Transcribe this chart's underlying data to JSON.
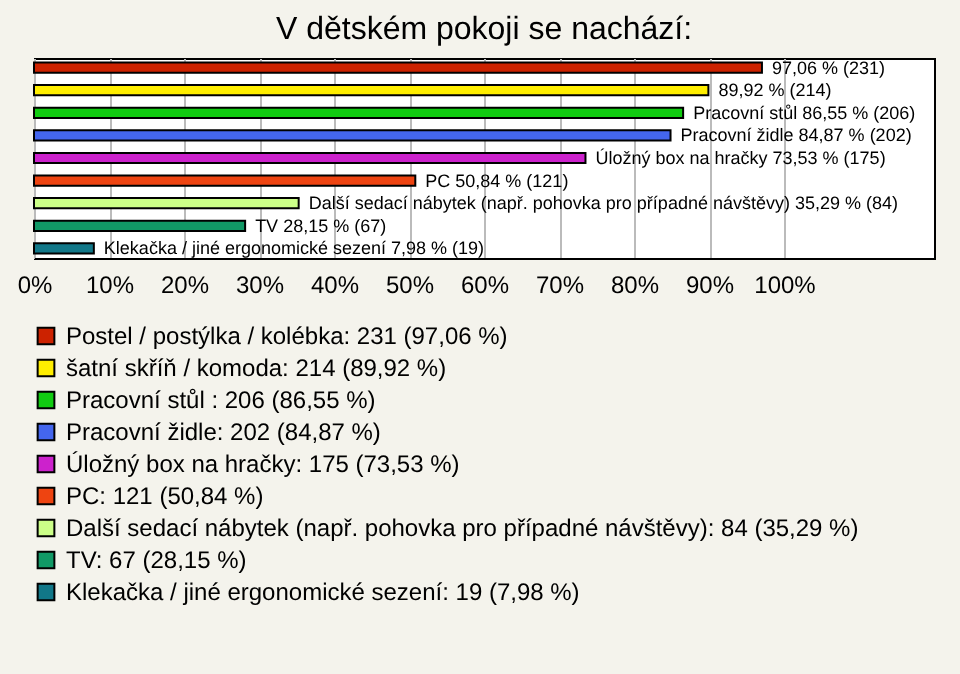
{
  "chart_data": {
    "type": "bar",
    "orientation": "horizontal",
    "title": "V dětském pokoji se nachází:",
    "categories": [
      null,
      null,
      null,
      null,
      null,
      null,
      null,
      null,
      null
    ],
    "series": [
      {
        "name": "Postel / postýlka / kolébka: 231 (97,06 %)",
        "color": "#cc2200",
        "values": [
          97.06,
          null,
          null,
          null,
          null,
          null,
          null,
          null,
          null
        ],
        "value_labels": [
          "97,06 % (231)",
          null,
          null,
          null,
          null,
          null,
          null,
          null,
          null
        ]
      },
      {
        "name": "šatní skříň / komoda: 214 (89,92 %)",
        "color": "#ffee00",
        "values": [
          null,
          89.92,
          null,
          null,
          null,
          null,
          null,
          null,
          null
        ],
        "value_labels": [
          null,
          "89,92 % (214)",
          null,
          null,
          null,
          null,
          null,
          null,
          null
        ]
      },
      {
        "name": "Pracovní stůl : 206 (86,55 %)",
        "color": "#11cc11",
        "values": [
          null,
          null,
          86.55,
          null,
          null,
          null,
          null,
          null,
          null
        ],
        "value_labels": [
          null,
          null,
          "Pracovní stůl  86,55 % (206)",
          null,
          null,
          null,
          null,
          null,
          null
        ]
      },
      {
        "name": "Pracovní židle: 202 (84,87 %)",
        "color": "#4466ee",
        "values": [
          null,
          null,
          null,
          84.87,
          null,
          null,
          null,
          null,
          null
        ],
        "value_labels": [
          null,
          null,
          null,
          "Pracovní židle 84,87 % (202)",
          null,
          null,
          null,
          null,
          null
        ]
      },
      {
        "name": "Úložný box na hračky: 175 (73,53 %)",
        "color": "#cc22cc",
        "values": [
          null,
          null,
          null,
          null,
          73.53,
          null,
          null,
          null,
          null
        ],
        "value_labels": [
          null,
          null,
          null,
          null,
          "Úložný box na hračky 73,53 % (175)",
          null,
          null,
          null,
          null
        ]
      },
      {
        "name": "PC: 121 (50,84 %)",
        "color": "#ee4411",
        "values": [
          null,
          null,
          null,
          null,
          null,
          50.84,
          null,
          null,
          null
        ],
        "value_labels": [
          null,
          null,
          null,
          null,
          null,
          "PC 50,84 % (121)",
          null,
          null,
          null
        ]
      },
      {
        "name": "Další sedací nábytek (např. pohovka pro případné návštěvy): 84 (35,29 %)",
        "color": "#ccff88",
        "values": [
          null,
          null,
          null,
          null,
          null,
          null,
          35.29,
          null,
          null
        ],
        "value_labels": [
          null,
          null,
          null,
          null,
          null,
          null,
          "Další sedací nábytek (např. pohovka pro případné návštěvy) 35,29 % (84)",
          null,
          null
        ]
      },
      {
        "name": "TV: 67 (28,15 %)",
        "color": "#119966",
        "values": [
          null,
          null,
          null,
          null,
          null,
          null,
          null,
          28.15,
          null
        ],
        "value_labels": [
          null,
          null,
          null,
          null,
          null,
          null,
          null,
          "TV 28,15 % (67)",
          null
        ]
      },
      {
        "name": "Klekačka / jiné ergonomické sezení: 19 (7,98 %)",
        "color": "#117788",
        "values": [
          null,
          null,
          null,
          null,
          null,
          null,
          null,
          null,
          7.98
        ],
        "value_labels": [
          null,
          null,
          null,
          null,
          null,
          null,
          null,
          null,
          "Klekačka / jiné ergonomické sezení 7,98 % (19)"
        ]
      }
    ],
    "xlim": [
      0,
      120
    ],
    "xticks": [
      {
        "value": 0,
        "label": "0%"
      },
      {
        "value": 10,
        "label": "10%"
      },
      {
        "value": 20,
        "label": "20%"
      },
      {
        "value": 30,
        "label": "30%"
      },
      {
        "value": 40,
        "label": "40%"
      },
      {
        "value": 50,
        "label": "50%"
      },
      {
        "value": 60,
        "label": "60%"
      },
      {
        "value": 70,
        "label": "70%"
      },
      {
        "value": 80,
        "label": "80%"
      },
      {
        "value": 90,
        "label": "90%"
      },
      {
        "value": 100,
        "label": "100%"
      }
    ],
    "grid": "x",
    "legend": "bottom"
  }
}
